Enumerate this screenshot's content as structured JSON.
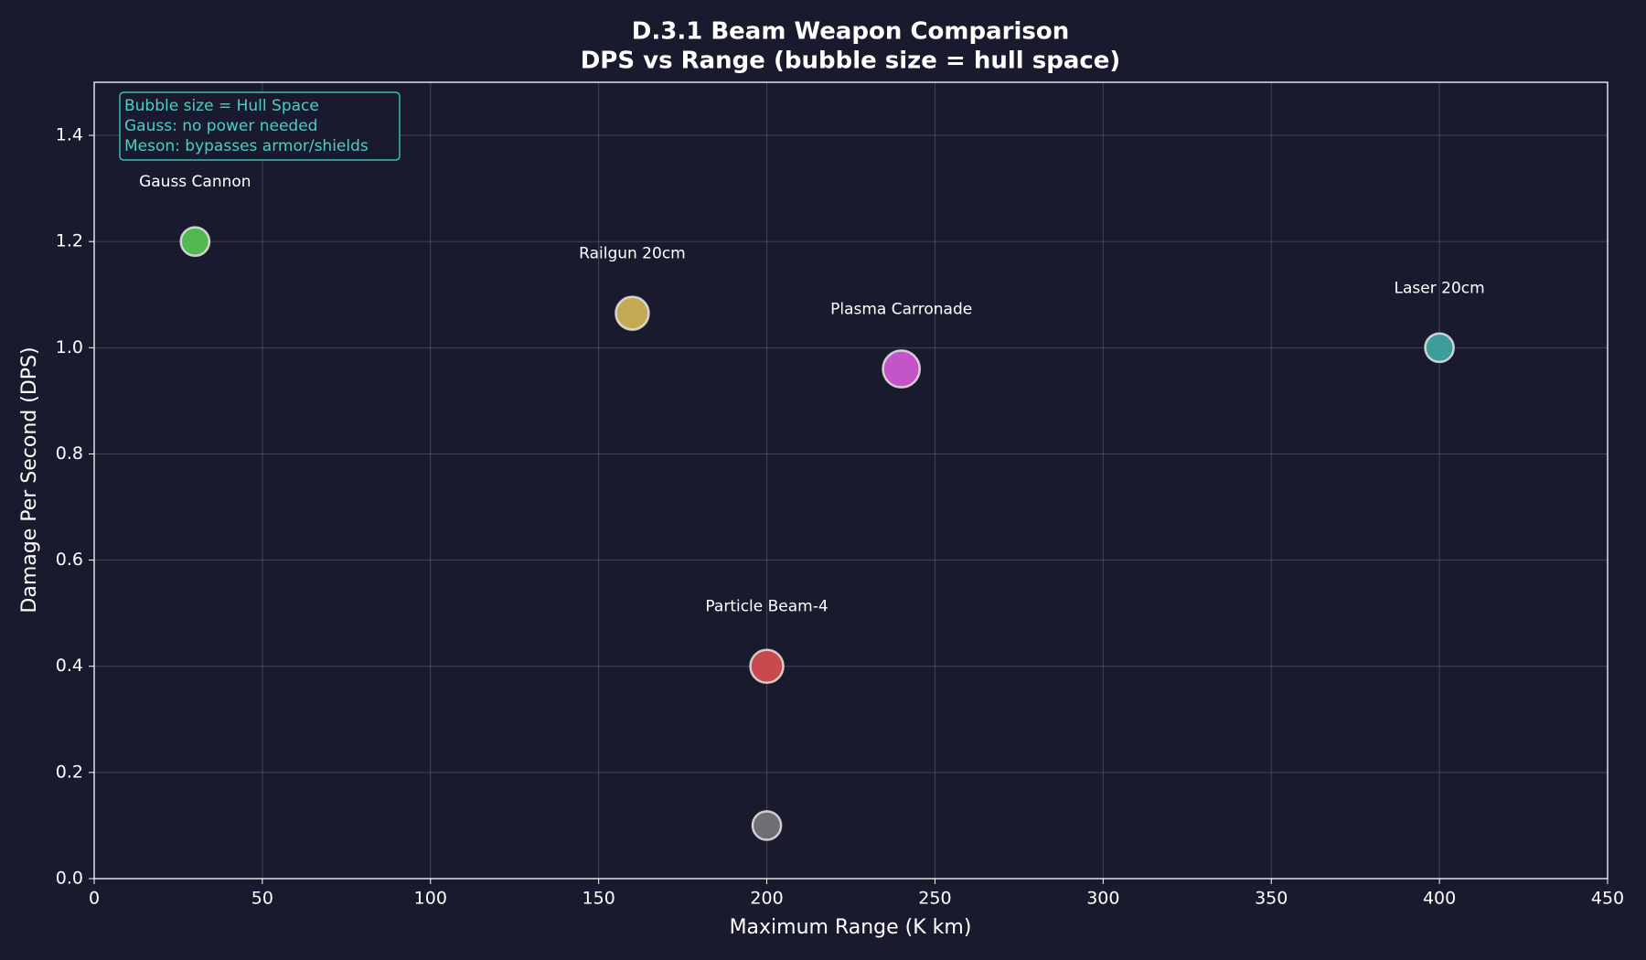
{
  "chart_data": {
    "type": "scatter",
    "title": "D.3.1 Beam Weapon Comparison",
    "subtitle": "DPS vs Range (bubble size = hull space)",
    "xlabel": "Maximum Range (K km)",
    "ylabel": "Damage Per Second (DPS)",
    "annotations": [
      "Bubble size = Hull Space",
      "Gauss: no power needed",
      "Meson: bypasses armor/shields"
    ],
    "labels": [
      "Gauss Cannon",
      "Railgun 20cm",
      "Plasma Carronade",
      "Laser 20cm",
      "Particle Beam-4",
      null
    ],
    "x": [
      30,
      160,
      240,
      400,
      200,
      200
    ],
    "values": [
      1.2,
      1.065,
      0.96,
      1.0,
      0.4,
      0.1
    ],
    "sizes": [
      3,
      4,
      5,
      3,
      4,
      3
    ],
    "colors": [
      "#52b852",
      "#c4aa52",
      "#c455c8",
      "#3d9c9c",
      "#c84a4e",
      "#6e6e73"
    ],
    "xlim": [
      0,
      450
    ],
    "xticks": [
      0,
      50,
      100,
      150,
      200,
      250,
      300,
      350,
      400,
      450
    ],
    "ylim": [
      0,
      1.5
    ],
    "yticks": [
      {
        "value": 0,
        "label": "0.0"
      },
      0.2,
      0.4,
      0.6,
      0.8,
      {
        "value": 1,
        "label": "1.0"
      },
      1.2,
      1.4
    ],
    "grid": true
  }
}
